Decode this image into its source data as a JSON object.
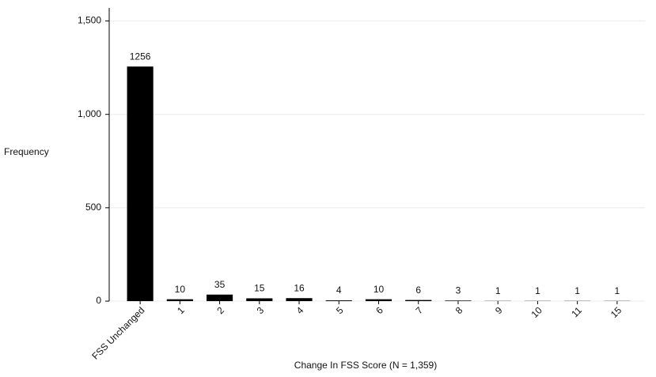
{
  "chart_data": {
    "type": "bar",
    "categories": [
      "FSS Unchanged",
      "1",
      "2",
      "3",
      "4",
      "5",
      "6",
      "7",
      "8",
      "9",
      "10",
      "11",
      "15"
    ],
    "values": [
      1256,
      10,
      35,
      15,
      16,
      4,
      10,
      6,
      3,
      1,
      1,
      1,
      1
    ],
    "color": "#000000",
    "x_label": "Change In FSS Score (N = 1,359)",
    "y_label": "Frequency",
    "ylim": [
      0,
      1570
    ],
    "yticks": [
      0,
      500,
      {
        "value": 1000,
        "label": "1,000"
      },
      {
        "value": 1500,
        "label": "1,500"
      }
    ],
    "grid": true
  }
}
